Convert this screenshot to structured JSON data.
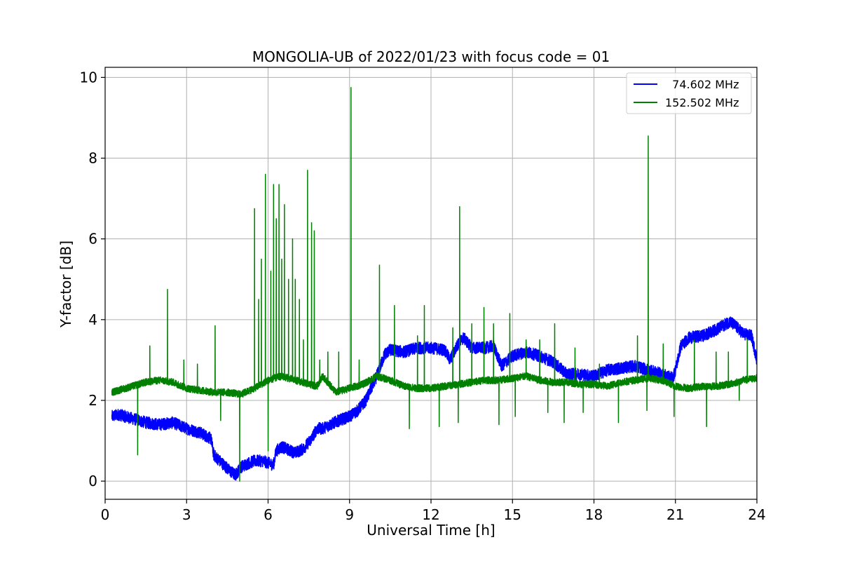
{
  "chart_data": {
    "type": "line",
    "title": "MONGOLIA-UB of 2022/01/23 with focus code = 01",
    "xlabel": "Universal Time [h]",
    "ylabel": "Y-factor [dB]",
    "xlim": [
      0,
      24
    ],
    "ylim": [
      -0.45,
      10.25
    ],
    "xticks": [
      0,
      3,
      6,
      9,
      12,
      15,
      18,
      21,
      24
    ],
    "yticks": [
      0,
      2,
      4,
      6,
      8,
      10
    ],
    "grid": true,
    "legend_position": "top-right",
    "series": [
      {
        "name": "74.602 MHz",
        "legend_label": "  74.602 MHz",
        "color": "#0000ff",
        "noise": 0.15,
        "x": [
          0.25,
          0.5,
          1.0,
          1.5,
          2.0,
          2.5,
          3.0,
          3.5,
          3.9,
          4.0,
          4.3,
          4.6,
          4.8,
          5.0,
          5.3,
          5.5,
          5.8,
          6.0,
          6.2,
          6.3,
          6.5,
          7.0,
          7.3,
          7.6,
          7.8,
          8.0,
          8.3,
          8.6,
          9.0,
          9.3,
          9.6,
          10.0,
          10.3,
          10.5,
          11.0,
          11.5,
          12.0,
          12.5,
          12.7,
          13.0,
          13.2,
          13.5,
          14.0,
          14.3,
          14.6,
          15.0,
          15.5,
          16.0,
          16.5,
          17.0,
          17.5,
          18.0,
          18.5,
          19.0,
          19.5,
          20.0,
          20.5,
          20.9,
          21.0,
          21.2,
          21.5,
          22.0,
          22.5,
          23.0,
          23.2,
          23.5,
          23.8,
          24.0
        ],
        "y": [
          1.6,
          1.65,
          1.55,
          1.45,
          1.4,
          1.45,
          1.3,
          1.2,
          1.05,
          0.65,
          0.45,
          0.25,
          0.15,
          0.35,
          0.45,
          0.5,
          0.5,
          0.45,
          0.4,
          0.75,
          0.85,
          0.7,
          0.8,
          1.05,
          1.3,
          1.3,
          1.4,
          1.5,
          1.6,
          1.75,
          2.0,
          2.6,
          3.15,
          3.25,
          3.2,
          3.3,
          3.3,
          3.25,
          3.0,
          3.4,
          3.55,
          3.3,
          3.3,
          3.35,
          2.85,
          3.1,
          3.2,
          3.1,
          2.95,
          2.65,
          2.65,
          2.6,
          2.75,
          2.8,
          2.85,
          2.75,
          2.65,
          2.55,
          2.75,
          3.35,
          3.55,
          3.6,
          3.75,
          3.95,
          3.85,
          3.65,
          3.6,
          3.0
        ]
      },
      {
        "name": "152.502 MHz",
        "legend_label": "152.502 MHz",
        "color": "#008000",
        "noise": 0.09,
        "x": [
          0.25,
          0.5,
          1.0,
          1.5,
          2.0,
          2.5,
          3.0,
          3.5,
          4.0,
          4.5,
          5.0,
          5.5,
          6.0,
          6.5,
          7.0,
          7.5,
          7.8,
          8.0,
          8.5,
          9.0,
          9.5,
          10.0,
          10.5,
          11.0,
          11.5,
          12.0,
          12.5,
          13.0,
          13.5,
          14.0,
          14.5,
          15.0,
          15.5,
          16.0,
          16.5,
          17.0,
          17.5,
          18.0,
          18.5,
          19.0,
          19.5,
          20.0,
          20.5,
          21.0,
          21.5,
          22.0,
          22.5,
          23.0,
          23.5,
          24.0
        ],
        "y": [
          2.2,
          2.25,
          2.35,
          2.45,
          2.5,
          2.45,
          2.3,
          2.25,
          2.2,
          2.2,
          2.15,
          2.3,
          2.5,
          2.6,
          2.5,
          2.4,
          2.35,
          2.6,
          2.2,
          2.3,
          2.4,
          2.6,
          2.5,
          2.35,
          2.3,
          2.3,
          2.35,
          2.4,
          2.45,
          2.5,
          2.5,
          2.55,
          2.6,
          2.5,
          2.45,
          2.45,
          2.4,
          2.4,
          2.35,
          2.45,
          2.5,
          2.55,
          2.5,
          2.35,
          2.3,
          2.35,
          2.35,
          2.4,
          2.5,
          2.55
        ],
        "spikes": [
          [
            1.2,
            0.65
          ],
          [
            1.65,
            3.35
          ],
          [
            2.3,
            4.75
          ],
          [
            2.9,
            3.0
          ],
          [
            3.4,
            2.9
          ],
          [
            4.05,
            3.85
          ],
          [
            4.25,
            1.5
          ],
          [
            4.95,
            0.0
          ],
          [
            5.5,
            6.75
          ],
          [
            5.65,
            4.5
          ],
          [
            5.75,
            5.5
          ],
          [
            5.9,
            7.6
          ],
          [
            6.0,
            0.75
          ],
          [
            6.1,
            5.2
          ],
          [
            6.2,
            7.35
          ],
          [
            6.3,
            6.5
          ],
          [
            6.4,
            7.35
          ],
          [
            6.5,
            5.5
          ],
          [
            6.6,
            6.85
          ],
          [
            6.75,
            5.0
          ],
          [
            6.9,
            6.0
          ],
          [
            7.0,
            5.0
          ],
          [
            7.15,
            4.5
          ],
          [
            7.3,
            3.5
          ],
          [
            7.45,
            7.7
          ],
          [
            7.6,
            6.4
          ],
          [
            7.7,
            6.2
          ],
          [
            7.9,
            3.0
          ],
          [
            8.2,
            3.2
          ],
          [
            8.6,
            3.2
          ],
          [
            8.8,
            2.3
          ],
          [
            9.05,
            9.75
          ],
          [
            9.35,
            3.0
          ],
          [
            10.1,
            5.35
          ],
          [
            10.65,
            4.35
          ],
          [
            11.2,
            1.3
          ],
          [
            11.5,
            3.6
          ],
          [
            11.75,
            4.35
          ],
          [
            12.3,
            1.35
          ],
          [
            12.8,
            3.8
          ],
          [
            13.0,
            1.45
          ],
          [
            13.05,
            6.8
          ],
          [
            13.5,
            3.9
          ],
          [
            13.95,
            4.3
          ],
          [
            14.3,
            3.9
          ],
          [
            14.5,
            1.4
          ],
          [
            14.9,
            4.15
          ],
          [
            15.1,
            1.6
          ],
          [
            15.5,
            3.5
          ],
          [
            16.0,
            3.5
          ],
          [
            16.3,
            1.7
          ],
          [
            16.55,
            3.9
          ],
          [
            16.9,
            1.45
          ],
          [
            17.3,
            3.3
          ],
          [
            17.6,
            1.7
          ],
          [
            18.2,
            2.9
          ],
          [
            18.9,
            1.45
          ],
          [
            19.6,
            3.6
          ],
          [
            19.95,
            1.75
          ],
          [
            20.0,
            8.55
          ],
          [
            20.55,
            3.4
          ],
          [
            20.95,
            1.6
          ],
          [
            21.7,
            3.5
          ],
          [
            22.15,
            1.35
          ],
          [
            22.5,
            3.2
          ],
          [
            22.95,
            3.2
          ],
          [
            23.35,
            2.0
          ],
          [
            23.65,
            3.5
          ]
        ]
      }
    ]
  }
}
